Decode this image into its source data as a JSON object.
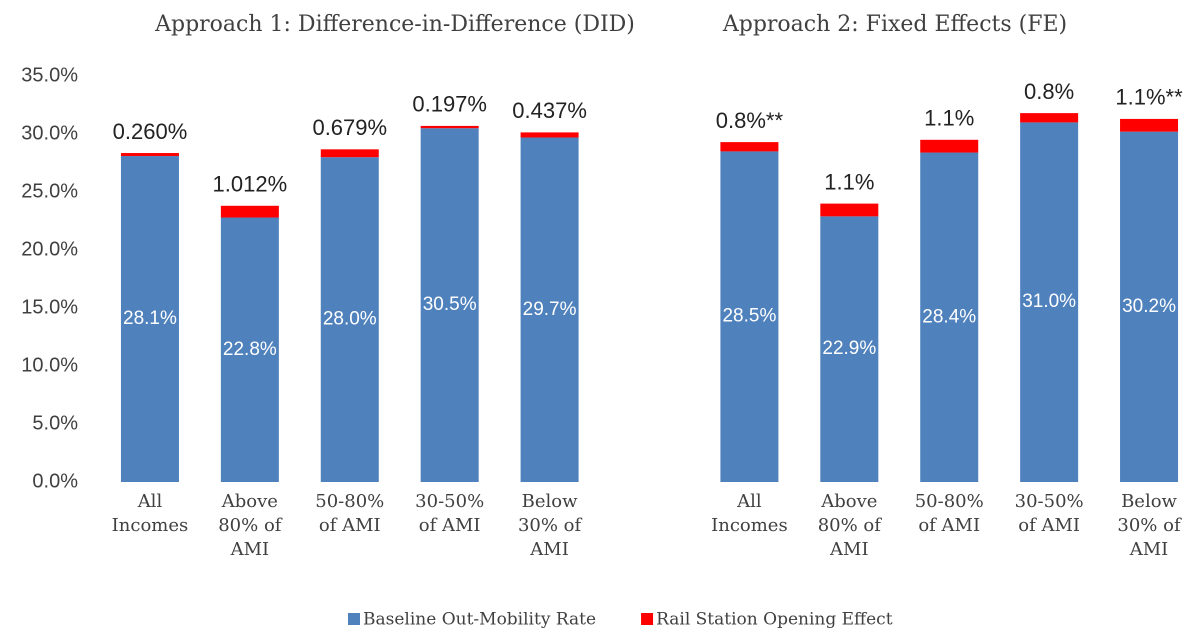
{
  "chart_data": {
    "type": "stacked_bar",
    "annotations": [
      "Approach 1: Difference-in-Difference (DID)",
      "Approach 2: Fixed Effects (FE)"
    ],
    "categories": [
      "All Incomes",
      "Above 80% of AMI",
      "50-80% of AMI",
      "30-50% of AMI",
      "Below 30% of AMI",
      null,
      "All Incomes",
      "Above 80% of AMI",
      "50-80% of AMI",
      "30-50% of AMI",
      "Below 30% of AMI"
    ],
    "series": [
      {
        "name": "Baseline Out-Mobility Rate",
        "color": "#4f81bd",
        "values": [
          28.1,
          22.8,
          28.0,
          30.5,
          29.7,
          null,
          28.5,
          22.9,
          28.4,
          31.0,
          30.2
        ],
        "value_labels": [
          "28.1%",
          "22.8%",
          "28.0%",
          "30.5%",
          "29.7%",
          null,
          "28.5%",
          "22.9%",
          "28.4%",
          "31.0%",
          "30.2%"
        ]
      },
      {
        "name": "Rail Station Opening Effect",
        "color": "#ff0000",
        "values": [
          0.26,
          1.012,
          0.679,
          0.197,
          0.437,
          null,
          0.8,
          1.1,
          1.1,
          0.8,
          1.1
        ],
        "value_labels": [
          "0.260%",
          "1.012%",
          "0.679%",
          "0.197%",
          "0.437%",
          null,
          "0.8%**",
          "1.1%",
          "1.1%",
          "0.8%",
          "1.1%**"
        ]
      }
    ],
    "ylim": [
      0,
      35
    ],
    "yticks": [
      {
        "value": 0,
        "label": "0.0%"
      },
      {
        "value": 5,
        "label": "5.0%"
      },
      {
        "value": 10,
        "label": "10.0%"
      },
      {
        "value": 15,
        "label": "15.0%"
      },
      {
        "value": 20,
        "label": "20.0%"
      },
      {
        "value": 25,
        "label": "25.0%"
      },
      {
        "value": 30,
        "label": "30.0%"
      },
      {
        "value": 35,
        "label": "35.0%"
      }
    ],
    "legend": "bottom"
  }
}
